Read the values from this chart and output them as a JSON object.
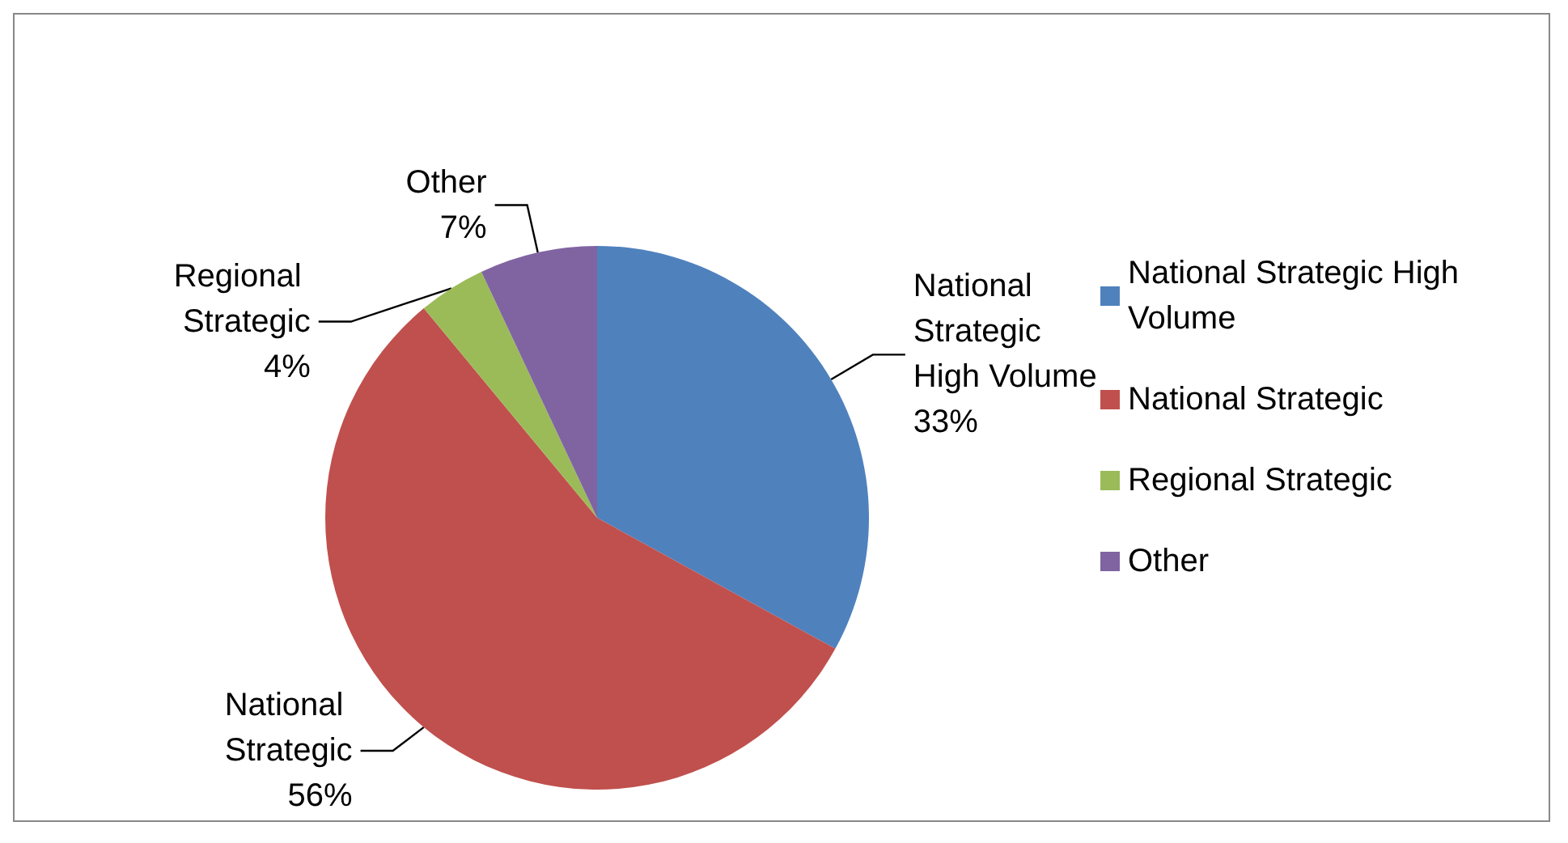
{
  "chart_data": {
    "type": "pie",
    "categories": [
      "National Strategic High Volume",
      "National Strategic",
      "Regional Strategic",
      "Other"
    ],
    "values": [
      33,
      56,
      4,
      7
    ],
    "colors": [
      "#4f81bd",
      "#c0504d",
      "#9bbb59",
      "#8064a2"
    ],
    "value_labels": [
      "33%",
      "56%",
      "4%",
      "7%"
    ],
    "legend": "right"
  }
}
